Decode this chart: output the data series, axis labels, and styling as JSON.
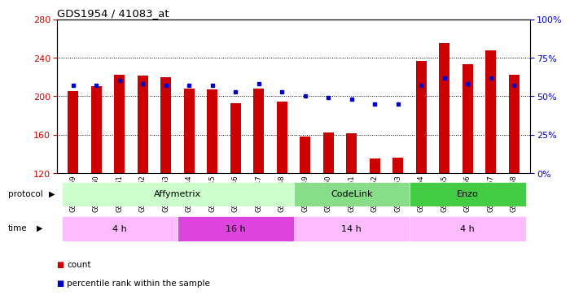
{
  "title": "GDS1954 / 41083_at",
  "samples": [
    "GSM73359",
    "GSM73360",
    "GSM73361",
    "GSM73362",
    "GSM73363",
    "GSM73344",
    "GSM73345",
    "GSM73346",
    "GSM73347",
    "GSM73348",
    "GSM73349",
    "GSM73350",
    "GSM73351",
    "GSM73352",
    "GSM73353",
    "GSM73354",
    "GSM73355",
    "GSM73356",
    "GSM73357",
    "GSM73358"
  ],
  "count_values": [
    205,
    210,
    222,
    221,
    220,
    208,
    207,
    193,
    208,
    194,
    158,
    162,
    161,
    135,
    136,
    237,
    255,
    233,
    248,
    222
  ],
  "percentile_values": [
    57,
    57,
    60,
    58,
    57,
    57,
    57,
    53,
    58,
    53,
    50,
    49,
    48,
    45,
    45,
    57,
    62,
    58,
    62,
    57
  ],
  "ylim_left": [
    120,
    280
  ],
  "ylim_right": [
    0,
    100
  ],
  "left_yticks": [
    120,
    160,
    200,
    240,
    280
  ],
  "right_yticks": [
    0,
    25,
    50,
    75,
    100
  ],
  "bar_color": "#cc0000",
  "dot_color": "#0000cc",
  "bar_width": 0.45,
  "protocol_groups": [
    {
      "label": "Affymetrix",
      "start": 0,
      "end": 9,
      "color": "#ccffcc"
    },
    {
      "label": "CodeLink",
      "start": 10,
      "end": 14,
      "color": "#88dd88"
    },
    {
      "label": "Enzo",
      "start": 15,
      "end": 19,
      "color": "#44cc44"
    }
  ],
  "time_groups": [
    {
      "label": "4 h",
      "start": 0,
      "end": 4,
      "color": "#ffbbff"
    },
    {
      "label": "16 h",
      "start": 5,
      "end": 9,
      "color": "#dd44dd"
    },
    {
      "label": "14 h",
      "start": 10,
      "end": 14,
      "color": "#ffbbff"
    },
    {
      "label": "4 h",
      "start": 15,
      "end": 19,
      "color": "#ffbbff"
    }
  ],
  "legend_items": [
    {
      "label": "count",
      "color": "#cc0000"
    },
    {
      "label": "percentile rank within the sample",
      "color": "#0000cc"
    }
  ],
  "bg_color": "#ffffff",
  "plot_bg_color": "#ffffff",
  "tick_label_color_left": "#cc0000",
  "tick_label_color_right": "#0000cc",
  "grid_yticks": [
    120,
    160,
    200,
    240
  ]
}
